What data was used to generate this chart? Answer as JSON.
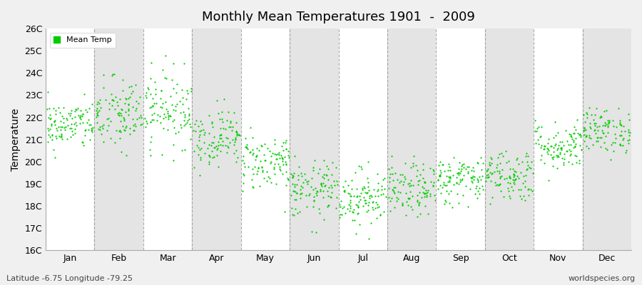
{
  "title": "Monthly Mean Temperatures 1901  -  2009",
  "ylabel": "Temperature",
  "ylim": [
    16,
    26
  ],
  "ytick_labels": [
    "16C",
    "17C",
    "18C",
    "19C",
    "20C",
    "21C",
    "22C",
    "23C",
    "24C",
    "25C",
    "26C"
  ],
  "months": [
    "Jan",
    "Feb",
    "Mar",
    "Apr",
    "May",
    "Jun",
    "Jul",
    "Aug",
    "Sep",
    "Oct",
    "Nov",
    "Dec"
  ],
  "dot_color": "#00CC00",
  "background_color": "#F0F0F0",
  "band_color_light": "#FFFFFF",
  "band_color_dark": "#E4E4E4",
  "grid_color": "#888888",
  "legend_label": "Mean Temp",
  "caption_left": "Latitude -6.75 Longitude -79.25",
  "caption_right": "worldspecies.org",
  "monthly_means": [
    21.65,
    22.1,
    22.4,
    21.1,
    20.0,
    18.7,
    18.4,
    18.7,
    19.2,
    19.4,
    20.7,
    21.4
  ],
  "monthly_stds": [
    0.55,
    0.85,
    0.85,
    0.65,
    0.65,
    0.65,
    0.65,
    0.6,
    0.55,
    0.6,
    0.55,
    0.5
  ],
  "n_years": 109,
  "seed": 42
}
